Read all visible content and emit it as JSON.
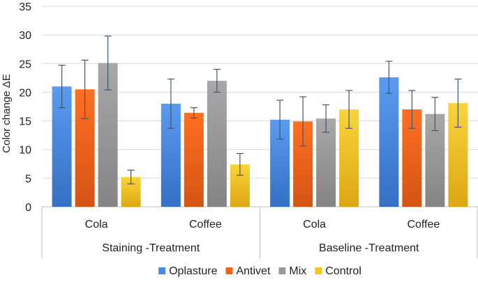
{
  "chart_data": {
    "type": "bar",
    "title": "",
    "ylabel": "Color change ΔE",
    "ylim": [
      0,
      35
    ],
    "yticks": [
      0,
      5,
      10,
      15,
      20,
      25,
      30,
      35
    ],
    "grid": true,
    "legend_position": "bottom",
    "groups": [
      {
        "label": "Staining -Treatment",
        "categories": [
          "Cola",
          "Coffee"
        ]
      },
      {
        "label": "Baseline -Treatment",
        "categories": [
          "Cola",
          "Coffee"
        ]
      }
    ],
    "series": [
      {
        "name": "Oplasture",
        "color": "#4a8be0",
        "values": [
          21.0,
          18.0,
          15.2,
          22.6
        ],
        "errors": [
          3.7,
          4.3,
          3.4,
          2.8
        ]
      },
      {
        "name": "Antivet",
        "color": "#f0651c",
        "values": [
          20.5,
          16.4,
          14.9,
          17.0
        ],
        "errors": [
          5.1,
          0.9,
          4.3,
          3.3
        ]
      },
      {
        "name": "Mix",
        "color": "#9a9a9a",
        "values": [
          25.1,
          22.0,
          15.4,
          16.2
        ],
        "errors": [
          4.7,
          2.0,
          2.4,
          2.9
        ]
      },
      {
        "name": "Control",
        "color": "#f3c81e",
        "values": [
          5.2,
          7.4,
          17.0,
          18.1
        ],
        "errors": [
          1.2,
          1.9,
          3.3,
          4.2
        ]
      }
    ]
  }
}
